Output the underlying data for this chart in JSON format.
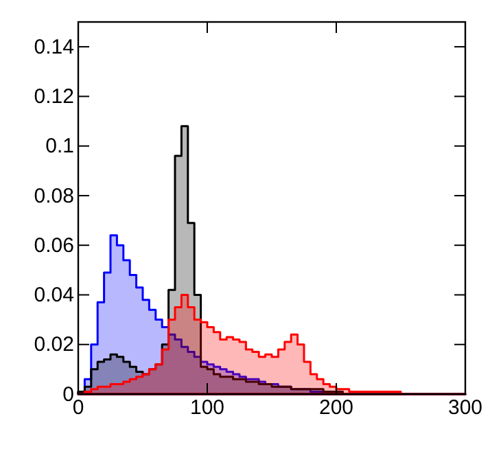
{
  "chart_data": {
    "type": "histogram",
    "bins": [
      0,
      5,
      10,
      15,
      20,
      25,
      30,
      35,
      40,
      45,
      50,
      55,
      60,
      65,
      70,
      75,
      80,
      85,
      90,
      95,
      100,
      105,
      110,
      115,
      120,
      125,
      130,
      135,
      140,
      145,
      150,
      155,
      160,
      165,
      170,
      175,
      180,
      185,
      190,
      195,
      200,
      205,
      210,
      215,
      220,
      225,
      230,
      235,
      240,
      245,
      250,
      255,
      260,
      265,
      270,
      275,
      280,
      285,
      290,
      295,
      300
    ],
    "series": [
      {
        "color": "#0000ff",
        "values": [
          0.001,
          0.006,
          0.02,
          0.037,
          0.049,
          0.064,
          0.06,
          0.054,
          0.048,
          0.043,
          0.038,
          0.034,
          0.03,
          0.027,
          0.024,
          0.022,
          0.019,
          0.017,
          0.015,
          0.013,
          0.012,
          0.011,
          0.01,
          0.009,
          0.008,
          0.007,
          0.006,
          0.006,
          0.005,
          0.004,
          0.004,
          0.003,
          0.003,
          0.002,
          0.002,
          0.002,
          0.001,
          0.001,
          0.001,
          0.001,
          0.001,
          0,
          0,
          0,
          0,
          0,
          0,
          0,
          0,
          0,
          0,
          0,
          0,
          0,
          0,
          0,
          0,
          0,
          0,
          0
        ]
      },
      {
        "color": "#000000",
        "values": [
          0.001,
          0.003,
          0.01,
          0.013,
          0.014,
          0.016,
          0.015,
          0.013,
          0.011,
          0.009,
          0.008,
          0.01,
          0.012,
          0.02,
          0.042,
          0.096,
          0.108,
          0.069,
          0.04,
          0.011,
          0.01,
          0.008,
          0.007,
          0.007,
          0.006,
          0.006,
          0.005,
          0.005,
          0.004,
          0.004,
          0.003,
          0.003,
          0.003,
          0.002,
          0.002,
          0.002,
          0.002,
          0.002,
          0.001,
          0.001,
          0.001,
          0,
          0,
          0,
          0,
          0,
          0,
          0,
          0,
          0,
          0,
          0,
          0,
          0,
          0,
          0,
          0,
          0,
          0,
          0
        ]
      },
      {
        "color": "#ff0000",
        "values": [
          0,
          0.001,
          0.002,
          0.003,
          0.003,
          0.004,
          0.004,
          0.005,
          0.006,
          0.007,
          0.008,
          0.01,
          0.012,
          0.018,
          0.03,
          0.035,
          0.04,
          0.035,
          0.03,
          0.029,
          0.027,
          0.025,
          0.022,
          0.023,
          0.022,
          0.021,
          0.018,
          0.017,
          0.015,
          0.016,
          0.015,
          0.018,
          0.021,
          0.024,
          0.02,
          0.013,
          0.008,
          0.006,
          0.004,
          0.003,
          0.002,
          0.002,
          0.001,
          0.001,
          0.001,
          0.001,
          0.001,
          0.001,
          0.001,
          0.001,
          0,
          0,
          0,
          0,
          0,
          0,
          0,
          0,
          0,
          0
        ]
      }
    ],
    "xlim": [
      0,
      300
    ],
    "xticks": [
      0,
      100,
      200,
      300
    ],
    "ylim": [
      0,
      0.15
    ],
    "yticks": [
      0,
      0.02,
      0.04,
      0.06,
      0.08,
      0.1,
      0.12,
      0.14
    ],
    "grid": false
  }
}
